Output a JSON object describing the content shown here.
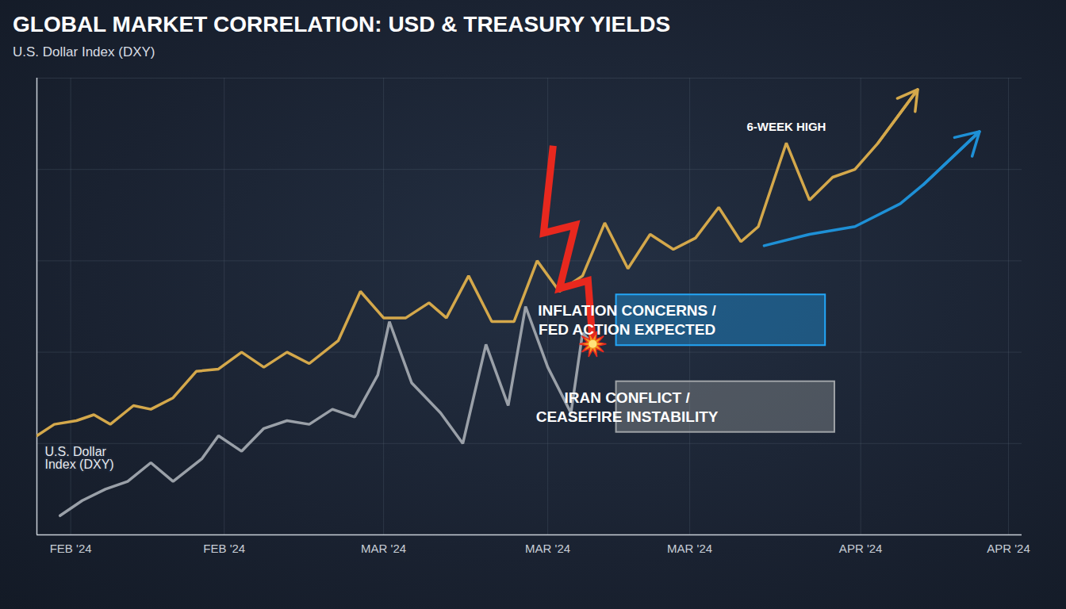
{
  "chart_data": {
    "type": "line",
    "title": "GLOBAL MARKET CORRELATION: USD & TREASURY YIELDS",
    "y_label": "U.S. Dollar Index (DXY)",
    "xlim": [
      0,
      102
    ],
    "xticks": [
      {
        "value": 3.5,
        "label": "FEB '24"
      },
      {
        "value": 19.4,
        "label": "FEB '24"
      },
      {
        "value": 35.9,
        "label": "MAR '24"
      },
      {
        "value": 52.9,
        "label": "MAR '24"
      },
      {
        "value": 67.6,
        "label": "MAR '24"
      },
      {
        "value": 85.3,
        "label": "APR '24"
      },
      {
        "value": 100.6,
        "label": "APR '24"
      }
    ],
    "ylim": [
      0,
      100
    ],
    "yticks": [
      0,
      20,
      40,
      60,
      80,
      100
    ],
    "tick_labels": "x",
    "grid": true,
    "series": [
      {
        "name": "U.S. Dollar Index (DXY)",
        "color": "#d4a84b",
        "marker": "arrow",
        "x": [
          0,
          1.8,
          4.1,
          5.9,
          7.6,
          10,
          11.8,
          14.1,
          16.5,
          18.8,
          21.2,
          23.5,
          25.9,
          28.2,
          31.2,
          33.5,
          35.9,
          38.2,
          40.6,
          42.4,
          44.7,
          47.1,
          49.4,
          51.8,
          54.1,
          56.5,
          58.8,
          61.2,
          63.5,
          65.9,
          68.2,
          70.6,
          72.9,
          74.7,
          77.6,
          80,
          82.4,
          84.7,
          87.1,
          91.2
        ],
        "values": [
          21.7,
          24.2,
          25,
          26.3,
          24.2,
          28.3,
          27.5,
          30,
          35.8,
          36.3,
          40,
          36.7,
          40,
          37.5,
          42.5,
          53.3,
          47.5,
          47.5,
          50.8,
          47.5,
          56.7,
          46.7,
          46.7,
          60,
          53.3,
          56.7,
          68.3,
          58.3,
          65.8,
          62.5,
          65,
          71.7,
          64.2,
          67.5,
          85.8,
          73.3,
          78.3,
          80,
          85.8,
          97.5
        ]
      },
      {
        "color": "#9aa0a8",
        "x": [
          2.4,
          4.7,
          7.1,
          9.4,
          11.8,
          14.1,
          17.1,
          18.8,
          21.2,
          23.5,
          25.9,
          28.2,
          30.6,
          32.9,
          35.3,
          36.5,
          38.8,
          41.8,
          44.1,
          46.5,
          48.8,
          50.6,
          52.9,
          55.3,
          56.5,
          57.6
        ],
        "values": [
          4.2,
          7.5,
          10,
          11.7,
          15.8,
          11.7,
          16.7,
          21.7,
          18.3,
          23.3,
          25,
          24.2,
          27.5,
          25.8,
          35,
          46.7,
          33.3,
          26.7,
          20,
          41.7,
          28.3,
          50,
          36.7,
          26.7,
          44.2,
          41.7
        ]
      },
      {
        "color": "#1e90d6",
        "marker": "arrow",
        "x": [
          75.3,
          80,
          84.7,
          89.4,
          91.8,
          97.6
        ],
        "values": [
          63.3,
          65.8,
          67.5,
          72.5,
          76.7,
          88.3
        ]
      }
    ],
    "annotations": [
      {
        "text": "6-WEEK HIGH",
        "x": 77.6,
        "y": 85.8
      },
      {
        "lines": [
          "INFLATION CONCERNS /",
          "FED ACTION EXPECTED"
        ],
        "color": "#1e90d6",
        "x": 60,
        "y": 47
      },
      {
        "lines": [
          "IRAN CONFLICT /",
          "CEASEFIRE INSTABILITY"
        ],
        "color": "#8a8d91",
        "x": 60,
        "y": 28
      }
    ]
  }
}
